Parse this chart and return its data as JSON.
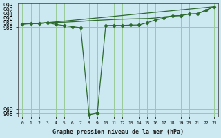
{
  "title": "Graphe pression niveau de la mer (hPa)",
  "background_color": "#cce8f0",
  "grid_color": "#99cc99",
  "line_color": "#2d6a2d",
  "xlim": [
    -0.5,
    23.5
  ],
  "ylim": [
    967.3,
    993.5
  ],
  "ytick_vals": [
    968,
    969,
    988,
    989,
    990,
    991,
    992,
    993
  ],
  "xtick_labels": [
    "0",
    "1",
    "2",
    "3",
    "4",
    "5",
    "6",
    "7",
    "8",
    "9",
    "10",
    "11",
    "12",
    "13",
    "14",
    "15",
    "16",
    "17",
    "18",
    "19",
    "20",
    "21",
    "22",
    "23"
  ],
  "line1_x": [
    0,
    3,
    23
  ],
  "line1_y": [
    988.7,
    989.0,
    992.7
  ],
  "line2_x": [
    0,
    1,
    2,
    3,
    4,
    5,
    6,
    7,
    8,
    9,
    10,
    11,
    12,
    13,
    14,
    15,
    16,
    17,
    18,
    19,
    20,
    21,
    22,
    23
  ],
  "line2_y": [
    988.7,
    988.75,
    988.8,
    989.0,
    989.05,
    989.1,
    989.2,
    989.3,
    989.45,
    989.55,
    989.65,
    989.75,
    989.82,
    989.88,
    989.93,
    989.97,
    990.1,
    990.35,
    990.55,
    990.65,
    991.0,
    991.05,
    991.85,
    992.7
  ],
  "line3_x": [
    0,
    1,
    2,
    3,
    4,
    5,
    6,
    7,
    8,
    9,
    10,
    11,
    12,
    13,
    14,
    15,
    16,
    17,
    18,
    19,
    20,
    21,
    22,
    23
  ],
  "line3_y": [
    988.7,
    988.8,
    988.75,
    989.0,
    988.6,
    988.35,
    988.1,
    987.85,
    967.7,
    968.1,
    988.35,
    988.4,
    988.38,
    988.45,
    988.48,
    989.0,
    989.65,
    990.05,
    990.55,
    990.65,
    991.0,
    991.05,
    991.85,
    992.7
  ]
}
